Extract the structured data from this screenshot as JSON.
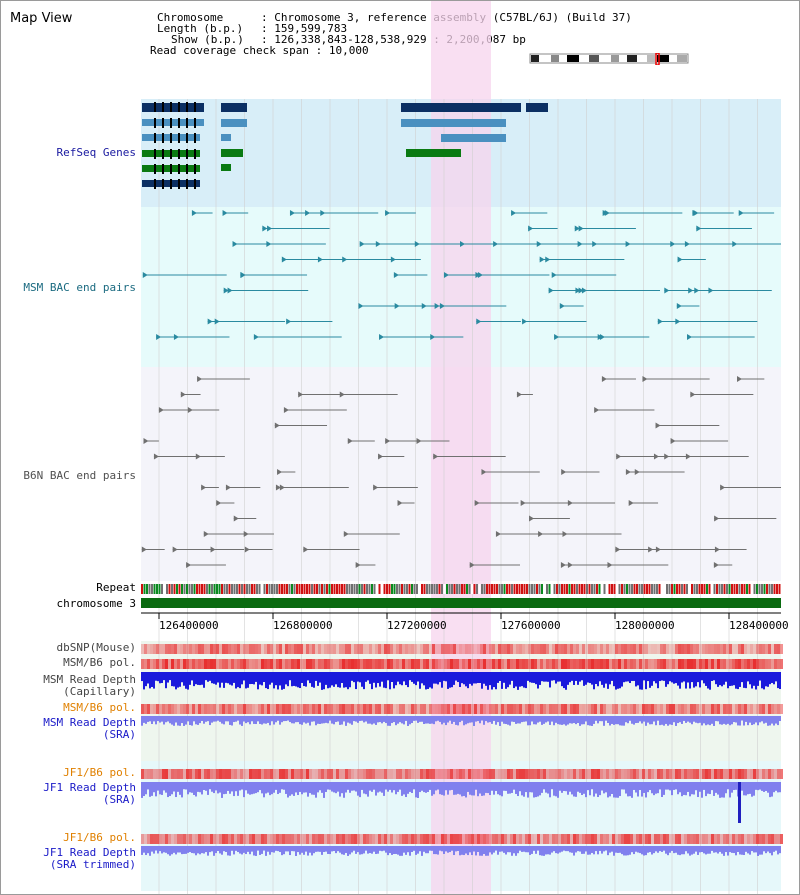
{
  "header": {
    "title": "Map View",
    "chromosome_key": "Chromosome",
    "chromosome_value": "Chromosome 3, reference assembly (C57BL/6J) (Build 37)",
    "length_key": "Length (b.p.)",
    "length_value": "159,599,783",
    "show_key": "Show (b.p.)",
    "show_value": "126,338,843-128,538,929 : 2,200,087 bp",
    "coverage_key": "Read coverage check span",
    "coverage_value": "10,000"
  },
  "tracks": {
    "refseq": "RefSeq Genes",
    "msm_bac": "MSM BAC end pairs",
    "b6n_bac": "B6N BAC end pairs",
    "repeat": "Repeat",
    "chromosome": "chromosome 3",
    "dbsnp": "dbSNP(Mouse)",
    "msm_b6_pol": "MSM/B6 pol.",
    "msm_depth_cap_1": "MSM Read Depth",
    "msm_depth_cap_2": "(Capillary)",
    "msm_b6_pol_2": "MSM/B6 pol.",
    "msm_depth_sra_1": "MSM Read Depth",
    "msm_depth_sra_2": "(SRA)",
    "jf1_b6_pol": "JF1/B6 pol.",
    "jf1_depth_sra_1": "JF1 Read Depth",
    "jf1_depth_sra_2": "(SRA)",
    "jf1_b6_pol_2": "JF1/B6 pol.",
    "jf1_depth_trim_1": "JF1 Read Depth",
    "jf1_depth_trim_2": "(SRA trimmed)"
  },
  "axis": {
    "ticks": [
      "126400000",
      "126800000",
      "127200000",
      "127600000",
      "128000000",
      "128400000"
    ]
  },
  "colors": {
    "refseq_bg": "#d8eef8",
    "msm_bg": "#e6fbfb",
    "b6n_bg": "#f4f4fa",
    "highlight": "#f7d4ee",
    "gene_navy": "#0b2f63",
    "gene_blue": "#4a90c0",
    "gene_green": "#0a7a12",
    "msm_line": "#2a8aa0",
    "b6n_line": "#707070",
    "chrom_green": "#0a6a10",
    "depth_blue": "#1a1adc",
    "depth_light": "#8080ee"
  }
}
